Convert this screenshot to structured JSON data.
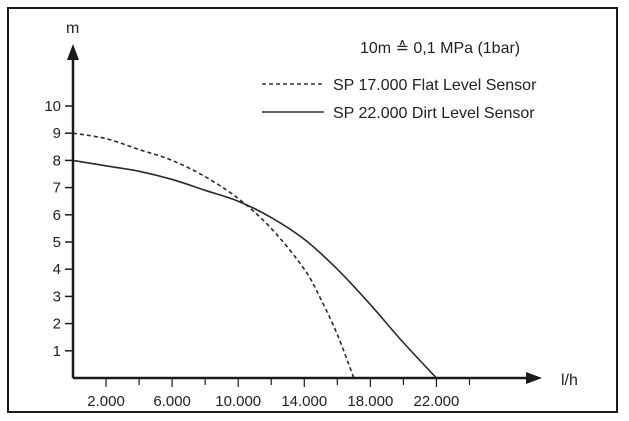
{
  "chart_data": {
    "type": "line",
    "ylabel": "m",
    "xlabel": "l/h",
    "note": "10m ≙ 0,1 MPa (1bar)",
    "yticks": [
      "1",
      "2",
      "3",
      "4",
      "5",
      "6",
      "7",
      "8",
      "9",
      "10"
    ],
    "xticks": [
      "2.000",
      "6.000",
      "10.000",
      "14.000",
      "18.000",
      "22.000"
    ],
    "xtick_values": [
      2000,
      6000,
      10000,
      14000,
      18000,
      22000
    ],
    "xlim": [
      0,
      25000
    ],
    "ylim": [
      0,
      11
    ],
    "legend_position": "top-right",
    "series": [
      {
        "name": "SP 17.000 Flat Level Sensor",
        "style": "dashed",
        "x": [
          0,
          2000,
          4000,
          6000,
          8000,
          10000,
          12000,
          14000,
          15000,
          16000,
          17000
        ],
        "y": [
          9.0,
          8.8,
          8.4,
          8.0,
          7.4,
          6.6,
          5.5,
          4.0,
          2.9,
          1.6,
          0
        ]
      },
      {
        "name": "SP 22.000 Dirt Level Sensor",
        "style": "solid",
        "x": [
          0,
          2000,
          4000,
          6000,
          8000,
          10000,
          12000,
          14000,
          16000,
          18000,
          20000,
          22000
        ],
        "y": [
          8.0,
          7.8,
          7.6,
          7.3,
          6.9,
          6.5,
          5.9,
          5.1,
          4.0,
          2.7,
          1.3,
          0
        ]
      }
    ]
  }
}
